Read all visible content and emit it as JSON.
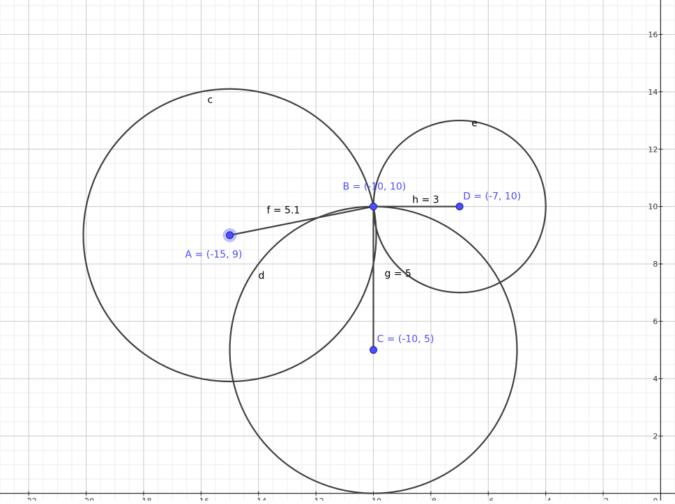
{
  "graph": {
    "colors": {
      "background": "#ffffff",
      "minor_grid": "#eeeeee",
      "major_grid": "#cccccc",
      "axis": "#252525",
      "curve": "#404040",
      "point_fill": "#4d4dff",
      "point_stroke": "#1a1a99",
      "point_label": "#4d4dff",
      "object_label": "#000000"
    },
    "x_axis": {
      "range": [
        -23,
        0.5
      ],
      "ticks": [
        -22,
        -20,
        -18,
        -16,
        -14,
        -12,
        -10,
        -8,
        -6,
        -4,
        -2
      ],
      "tick_labels": [
        "−22",
        "−20",
        "−18",
        "−16",
        "−14",
        "−12",
        "−10",
        "−8",
        "−6",
        "−4",
        "−2"
      ],
      "minor_step": 0.5
    },
    "y_axis": {
      "range": [
        -0.25,
        17.2
      ],
      "ticks": [
        2,
        4,
        6,
        8,
        10,
        12,
        14,
        16
      ],
      "tick_labels": [
        "2",
        "4",
        "6",
        "8",
        "10",
        "12",
        "14",
        "16"
      ],
      "minor_step": 0.5
    },
    "origin_label": "0",
    "points": [
      {
        "id": "A",
        "x": -15,
        "y": 9,
        "label": "A = (-15, 9)",
        "selected": true
      },
      {
        "id": "B",
        "x": -10,
        "y": 10,
        "label": "B = (-10, 10)",
        "selected": false
      },
      {
        "id": "C",
        "x": -10,
        "y": 5,
        "label": "C = (-10, 5)",
        "selected": false
      },
      {
        "id": "D",
        "x": -7,
        "y": 10,
        "label": "D = (-7, 10)",
        "selected": false
      }
    ],
    "circles": [
      {
        "name": "c",
        "center": "A",
        "through": "B",
        "label": "c"
      },
      {
        "name": "d",
        "center": "C",
        "through": "B",
        "label": "d"
      },
      {
        "name": "e",
        "center": "D",
        "through": "B",
        "label": "e"
      }
    ],
    "segments": [
      {
        "name": "f",
        "from": "A",
        "to": "B",
        "label": "f = 5.1"
      },
      {
        "name": "g",
        "from": "B",
        "to": "C",
        "label": "g = 5"
      },
      {
        "name": "h",
        "from": "B",
        "to": "D",
        "label": "h = 3"
      }
    ]
  }
}
